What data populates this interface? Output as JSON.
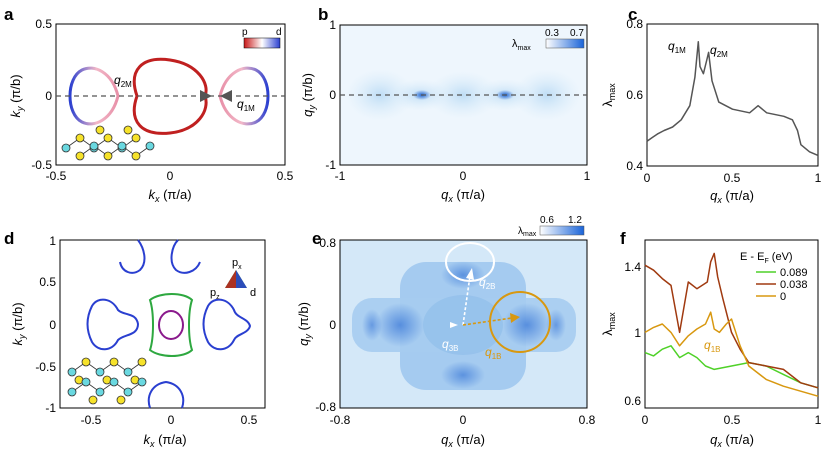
{
  "figure": {
    "colors": {
      "band_p": "#c81818",
      "band_d": "#2a3fd0",
      "band_pd_mix": "#f2b8c8",
      "map_low": "#ffffff",
      "map_high": "#1a64d8",
      "curve_gray": "#555555",
      "green": "#4fd128",
      "brown": "#a03a10",
      "gold": "#d89810",
      "purple": "#8a1a8c",
      "atom_yellow": "#f6e22a",
      "atom_cyan": "#6ad8e0"
    }
  },
  "panel_a": {
    "letter": "a",
    "xlabel_main": "k",
    "xlabel_sub": "x",
    "xlabel_unit": " (π/a)",
    "ylabel_main": "k",
    "ylabel_sub": "y",
    "ylabel_unit": " (π/b)",
    "xticks": [
      "-0.5",
      "0",
      "0.5"
    ],
    "yticks": [
      "0.5",
      "0",
      "-0.5"
    ],
    "colorbar_left": "p",
    "colorbar_right": "d",
    "vector_1_main": "q",
    "vector_1_sub": "2M",
    "vector_2_main": "q",
    "vector_2_sub": "1M",
    "icons": [
      "chain-structure-icon",
      "fermi-surface-icon"
    ]
  },
  "panel_b": {
    "letter": "b",
    "xlabel_main": "q",
    "xlabel_sub": "x",
    "xlabel_unit": " (π/a)",
    "ylabel_main": "q",
    "ylabel_sub": "y",
    "ylabel_unit": " (π/b)",
    "xticks": [
      "-1",
      "0",
      "1"
    ],
    "yticks": [
      "1",
      "0",
      "-1"
    ],
    "colorbar_label_main": "λ",
    "colorbar_label_sub": "max",
    "colorbar_min": "0.3",
    "colorbar_max": "0.7"
  },
  "panel_c": {
    "letter": "c",
    "xlabel_main": "q",
    "xlabel_sub": "x",
    "xlabel_unit": " (π/a)",
    "ylabel_main": "λ",
    "ylabel_sub": "max",
    "xticks": [
      "0",
      "0.5",
      "1"
    ],
    "yticks": [
      "0.8",
      "0.6",
      "0.4"
    ],
    "peak_1_main": "q",
    "peak_1_sub": "1M",
    "peak_2_main": "q",
    "peak_2_sub": "2M"
  },
  "panel_d": {
    "letter": "d",
    "xlabel_main": "k",
    "xlabel_sub": "x",
    "xlabel_unit": " (π/a)",
    "ylabel_main": "k",
    "ylabel_sub": "y",
    "ylabel_unit": " (π/b)",
    "xticks": [
      "-0.5",
      "0",
      "0.5"
    ],
    "yticks": [
      "1",
      "0.5",
      "0",
      "-0.5",
      "-1"
    ],
    "triangle_top_main": "p",
    "triangle_top_sub": "x",
    "triangle_left_main": "p",
    "triangle_left_sub": "z",
    "triangle_right": "d"
  },
  "panel_e": {
    "letter": "e",
    "xlabel_main": "q",
    "xlabel_sub": "x",
    "xlabel_unit": " (π/a)",
    "ylabel_main": "q",
    "ylabel_sub": "y",
    "ylabel_unit": " (π/b)",
    "xticks": [
      "-0.8",
      "0",
      "0.8"
    ],
    "yticks": [
      "0.8",
      "0",
      "-0.8"
    ],
    "colorbar_label_main": "λ",
    "colorbar_label_sub": "max",
    "colorbar_min": "0.6",
    "colorbar_max": "1.2",
    "vector_1_main": "q",
    "vector_1_sub": "1B",
    "vector_2_main": "q",
    "vector_2_sub": "2B",
    "vector_3_main": "q",
    "vector_3_sub": "3B"
  },
  "panel_f": {
    "letter": "f",
    "xlabel_main": "q",
    "xlabel_sub": "x",
    "xlabel_unit": " (π/a)",
    "ylabel_main": "λ",
    "ylabel_sub": "max",
    "xticks": [
      "0",
      "0.5",
      "1"
    ],
    "yticks": [
      "1.4",
      "1",
      "0.6"
    ],
    "legend_title": "E - E",
    "legend_title_sub": "F",
    "legend_title_unit": " (eV)",
    "legend": [
      "0.089",
      "0.038",
      "0"
    ],
    "peak_main": "q",
    "peak_sub": "1B"
  },
  "chart_data": [
    {
      "panel": "c",
      "type": "line",
      "title": "",
      "xlabel": "qx (π/a)",
      "ylabel": "λmax",
      "xlim": [
        0,
        1
      ],
      "ylim": [
        0.4,
        0.8
      ],
      "series": [
        {
          "name": "λmax",
          "x": [
            0.0,
            0.03,
            0.06,
            0.1,
            0.15,
            0.2,
            0.25,
            0.28,
            0.3,
            0.31,
            0.33,
            0.35,
            0.36,
            0.38,
            0.42,
            0.5,
            0.6,
            0.65,
            0.7,
            0.8,
            0.85,
            0.88,
            0.9,
            0.95,
            1.0
          ],
          "values": [
            0.47,
            0.48,
            0.49,
            0.5,
            0.51,
            0.53,
            0.57,
            0.65,
            0.75,
            0.68,
            0.66,
            0.7,
            0.72,
            0.64,
            0.58,
            0.56,
            0.55,
            0.57,
            0.55,
            0.54,
            0.53,
            0.5,
            0.46,
            0.44,
            0.43
          ]
        }
      ],
      "annotations": [
        "q1M",
        "q2M"
      ]
    },
    {
      "panel": "f",
      "type": "line",
      "title": "",
      "xlabel": "qx (π/a)",
      "ylabel": "λmax",
      "xlim": [
        0,
        1
      ],
      "ylim": [
        0.55,
        1.55
      ],
      "legend_title": "E - EF (eV)",
      "series": [
        {
          "name": "0.089",
          "x": [
            0.0,
            0.05,
            0.1,
            0.15,
            0.2,
            0.25,
            0.3,
            0.35,
            0.4,
            0.5,
            0.6,
            0.7,
            0.8,
            0.9,
            1.0
          ],
          "values": [
            0.88,
            0.86,
            0.9,
            0.92,
            0.85,
            0.88,
            0.85,
            0.8,
            0.78,
            0.8,
            0.82,
            0.8,
            0.75,
            0.7,
            0.67
          ]
        },
        {
          "name": "0.038",
          "x": [
            0.0,
            0.05,
            0.1,
            0.15,
            0.2,
            0.25,
            0.3,
            0.33,
            0.36,
            0.38,
            0.4,
            0.42,
            0.45,
            0.5,
            0.55,
            0.6,
            0.7,
            0.8,
            0.9,
            1.0
          ],
          "values": [
            1.4,
            1.37,
            1.32,
            1.28,
            1.0,
            1.3,
            1.26,
            1.28,
            1.3,
            1.42,
            1.47,
            1.33,
            1.2,
            1.0,
            0.9,
            0.82,
            0.8,
            0.78,
            0.7,
            0.67
          ]
        },
        {
          "name": "0",
          "x": [
            0.0,
            0.05,
            0.1,
            0.15,
            0.2,
            0.25,
            0.3,
            0.35,
            0.38,
            0.4,
            0.43,
            0.47,
            0.5,
            0.55,
            0.6,
            0.7,
            0.8,
            0.9,
            1.0
          ],
          "values": [
            1.0,
            1.03,
            1.05,
            1.0,
            0.92,
            0.98,
            1.02,
            1.05,
            1.12,
            1.02,
            1.0,
            1.05,
            1.08,
            0.92,
            0.8,
            0.72,
            0.68,
            0.65,
            0.62
          ]
        }
      ],
      "annotations": [
        "q1B"
      ]
    }
  ]
}
